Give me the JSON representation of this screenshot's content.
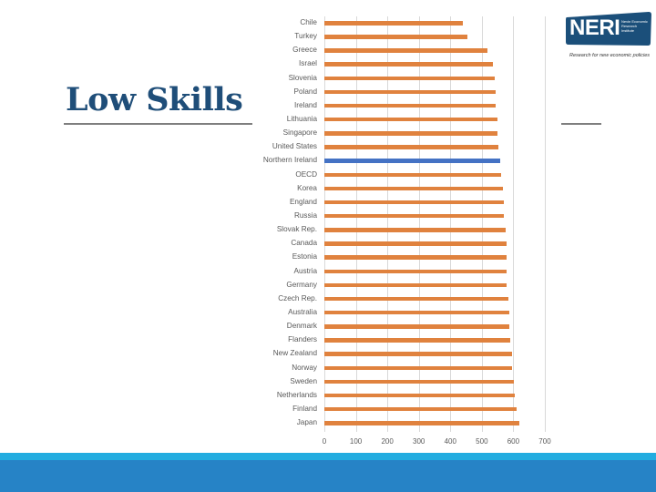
{
  "slide": {
    "title": "Low Skills",
    "logo": {
      "name": "NERI",
      "subtitle": "Nevin Economic Research Institute",
      "tagline": "Research for new economic policies",
      "color": "#1B4F7A"
    },
    "colors": {
      "title": "#1F4E79",
      "band_light": "#22ACE0",
      "band_dark": "#2683C6"
    }
  },
  "chart_data": {
    "type": "bar",
    "orientation": "horizontal",
    "title": "",
    "xlabel": "",
    "ylabel": "",
    "xlim": [
      0,
      700
    ],
    "xticks": [
      "0",
      "100",
      "200",
      "300",
      "400",
      "500",
      "600",
      "700"
    ],
    "grid": true,
    "legend": null,
    "highlight": {
      "category": "Northern Ireland",
      "color": "#4472C4"
    },
    "bar_color": "#E0823E",
    "categories": [
      "Chile",
      "Turkey",
      "Greece",
      "Israel",
      "Slovenia",
      "Poland",
      "Ireland",
      "Lithuania",
      "Singapore",
      "United States",
      "Northern Ireland",
      "OECD",
      "Korea",
      "England",
      "Russia",
      "Slovak Rep.",
      "Canada",
      "Estonia",
      "Austria",
      "Germany",
      "Czech Rep.",
      "Australia",
      "Denmark",
      "Flanders",
      "New Zealand",
      "Norway",
      "Sweden",
      "Netherlands",
      "Finland",
      "Japan"
    ],
    "values": [
      440,
      453,
      519,
      534,
      540,
      545,
      545,
      551,
      551,
      553,
      558,
      562,
      566,
      570,
      570,
      577,
      579,
      579,
      579,
      579,
      585,
      586,
      588,
      590,
      596,
      597,
      603,
      605,
      611,
      619
    ]
  }
}
